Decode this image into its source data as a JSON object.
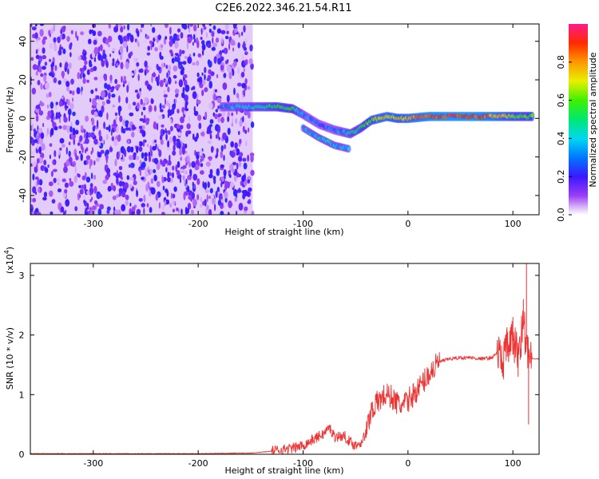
{
  "title": "C2E6.2022.346.21.54.R11",
  "colors": {
    "snr_line": "#ee3333",
    "frame": "#000000"
  },
  "chart_data": [
    {
      "type": "heatmap",
      "xlabel": "Height of straight line (km)",
      "ylabel": "Frequency (Hz)",
      "xlim": [
        -360,
        125
      ],
      "ylim": [
        -50,
        49
      ],
      "x_ticks": [
        -300,
        -200,
        -100,
        0,
        100
      ],
      "y_ticks": [
        -40,
        -20,
        0,
        20,
        40
      ],
      "colorbar": {
        "label": "Normalized spectral amplitude",
        "range": [
          0,
          1
        ],
        "ticks": [
          0.0,
          0.2,
          0.4,
          0.6,
          0.8
        ],
        "colormap": "rainbow (white-violet-blue-cyan-green-yellow-orange-red-magenta)"
      },
      "noise_region": {
        "x_range": [
          -360,
          -148
        ],
        "freq_range": [
          -50,
          49
        ],
        "level": "low (0.05-0.25)"
      },
      "signal_track": [
        {
          "x": -178,
          "freq": 6,
          "amp": 0.3
        },
        {
          "x": -145,
          "freq": 6,
          "amp": 0.45
        },
        {
          "x": -125,
          "freq": 6,
          "amp": 0.55
        },
        {
          "x": -110,
          "freq": 5,
          "amp": 0.55
        },
        {
          "x": -100,
          "freq": 2,
          "amp": 0.35
        },
        {
          "x": -85,
          "freq": -3,
          "amp": 0.3
        },
        {
          "x": -70,
          "freq": -6,
          "amp": 0.3
        },
        {
          "x": -55,
          "freq": -8,
          "amp": 0.45
        },
        {
          "x": -45,
          "freq": -5,
          "amp": 0.5
        },
        {
          "x": -35,
          "freq": -1,
          "amp": 0.65
        },
        {
          "x": -20,
          "freq": 1,
          "amp": 0.75
        },
        {
          "x": -10,
          "freq": 0,
          "amp": 0.7
        },
        {
          "x": 0,
          "freq": 0,
          "amp": 0.75
        },
        {
          "x": 20,
          "freq": 1,
          "amp": 0.85
        },
        {
          "x": 40,
          "freq": 1,
          "amp": 0.9
        },
        {
          "x": 60,
          "freq": 1,
          "amp": 0.9
        },
        {
          "x": 80,
          "freq": 1,
          "amp": 0.8
        },
        {
          "x": 100,
          "freq": 1,
          "amp": 0.65
        },
        {
          "x": 120,
          "freq": 1,
          "amp": 0.6
        }
      ],
      "branch": [
        {
          "x": -100,
          "freq": -5,
          "amp": 0.35
        },
        {
          "x": -85,
          "freq": -10,
          "amp": 0.4
        },
        {
          "x": -70,
          "freq": -14,
          "amp": 0.4
        },
        {
          "x": -55,
          "freq": -16,
          "amp": 0.35
        }
      ]
    },
    {
      "type": "line",
      "xlabel": "Height of straight line (km)",
      "ylabel": "SNR (10 * v/v)",
      "y_multiplier": "(x10^4)",
      "y_multiplier_exp": "4",
      "xlim": [
        -360,
        125
      ],
      "ylim": [
        0,
        3.2
      ],
      "x_ticks": [
        -300,
        -200,
        -100,
        0,
        100
      ],
      "y_ticks": [
        0,
        1,
        2,
        3
      ],
      "series": [
        {
          "x": [
            -360,
            -300,
            -200,
            -150,
            -130,
            -120,
            -110,
            -100,
            -90,
            -80,
            -75,
            -70,
            -60,
            -55,
            -50,
            -45,
            -40,
            -35,
            -30,
            -25,
            -20,
            -15,
            -10,
            -5,
            0,
            10,
            20,
            30,
            40,
            50,
            60,
            70,
            80,
            85,
            90,
            95,
            100,
            105,
            110,
            115,
            125
          ],
          "y": [
            0.01,
            0.01,
            0.01,
            0.02,
            0.05,
            0.08,
            0.1,
            0.15,
            0.25,
            0.35,
            0.45,
            0.3,
            0.3,
            0.2,
            0.15,
            0.2,
            0.35,
            0.75,
            0.85,
            0.95,
            1.0,
            0.95,
            0.85,
            0.8,
            0.9,
            1.1,
            1.35,
            1.55,
            1.6,
            1.62,
            1.62,
            1.6,
            1.62,
            1.7,
            1.55,
            1.8,
            1.9,
            1.7,
            2.2,
            1.6,
            1.6
          ]
        }
      ],
      "tall_spikes": [
        {
          "x": 95,
          "y": 2.05
        },
        {
          "x": 100,
          "y": 2.3
        },
        {
          "x": 105,
          "y": 1.3
        },
        {
          "x": 110,
          "y": 2.6
        },
        {
          "x": 113,
          "y": 3.35
        },
        {
          "x": 115,
          "y": 0.5
        }
      ]
    }
  ]
}
